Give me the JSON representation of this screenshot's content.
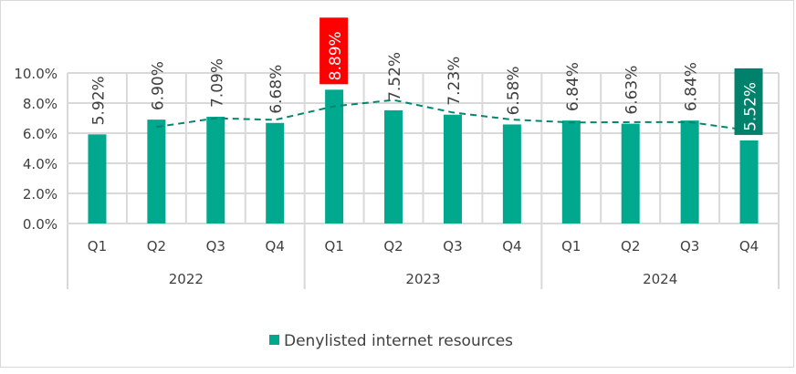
{
  "chart_data": {
    "type": "bar",
    "title": "",
    "xlabel": "",
    "ylabel": "",
    "ylim": [
      0,
      10
    ],
    "yticks": [
      "0.0%",
      "2.0%",
      "4.0%",
      "6.0%",
      "8.0%",
      "10.0%"
    ],
    "grid": true,
    "groups": [
      {
        "label": "2022",
        "categories": [
          "Q1",
          "Q2",
          "Q3",
          "Q4"
        ]
      },
      {
        "label": "2023",
        "categories": [
          "Q1",
          "Q2",
          "Q3",
          "Q4"
        ]
      },
      {
        "label": "2024",
        "categories": [
          "Q1",
          "Q2",
          "Q3",
          "Q4"
        ]
      }
    ],
    "series": [
      {
        "name": "Denylisted internet resources",
        "color": "#00a88e",
        "values": [
          5.92,
          6.9,
          7.09,
          6.68,
          8.89,
          7.52,
          7.23,
          6.58,
          6.84,
          6.63,
          6.84,
          5.52
        ],
        "labels": [
          "5.92%",
          "6.90%",
          "7.09%",
          "6.68%",
          "8.89%",
          "7.52%",
          "7.23%",
          "6.58%",
          "6.84%",
          "6.63%",
          "6.84%",
          "5.52%"
        ]
      }
    ],
    "trendline": {
      "type": "moving-average",
      "period": 2,
      "color": "#00876f",
      "style": "dashed"
    },
    "highlighted_labels": [
      {
        "index": 4,
        "background": "#ff0000",
        "text_color": "#ffffff"
      },
      {
        "index": 11,
        "background": "#00816b",
        "text_color": "#ffffff"
      }
    ],
    "legend": {
      "position": "bottom",
      "entries": [
        "Denylisted internet resources"
      ]
    }
  }
}
